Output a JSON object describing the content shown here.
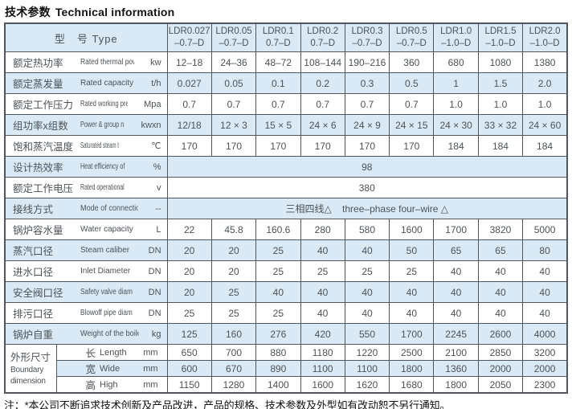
{
  "page": {
    "title_cn": "技术参数",
    "title_en": "Technical information",
    "footer_note": "注：*本公司不断追求技术创新及产品改进，产品的规格、技术参数及外型如有改动恕不另行通知。"
  },
  "colors": {
    "stripe": "#d9e9f5",
    "border": "#50565c",
    "text": "#4c5257"
  },
  "table": {
    "header_label": "型　号 Type",
    "models": [
      {
        "name": "LDR0.027",
        "suffix": "–0.7–D"
      },
      {
        "name": "LDR0.05",
        "suffix": "–0.7–D"
      },
      {
        "name": "LDR0.1",
        "suffix": "0.7–D"
      },
      {
        "name": "LDR0.2",
        "suffix": "0.7–D"
      },
      {
        "name": "LDR0.3",
        "suffix": "–0.7–D"
      },
      {
        "name": "LDR0.5",
        "suffix": "–0.7–D"
      },
      {
        "name": "LDR1.0",
        "suffix": "–1.0–D"
      },
      {
        "name": "LDR1.5",
        "suffix": "–1.0–D"
      },
      {
        "name": "LDR2.0",
        "suffix": "–1.0–D"
      }
    ],
    "rows": [
      {
        "cn": "额定热功率",
        "en": "Rated thermal power",
        "unit": "kw",
        "values": [
          "12–18",
          "24–36",
          "48–72",
          "108–144",
          "190–216",
          "360",
          "680",
          "1080",
          "1380"
        ]
      },
      {
        "cn": "额定蒸发量",
        "en": "Rated capacity",
        "unit": "t/h",
        "values": [
          "0.027",
          "0.05",
          "0.1",
          "0.2",
          "0.3",
          "0.5",
          "1",
          "1.5",
          "2.0"
        ]
      },
      {
        "cn": "额定工作压力",
        "en": "Rated working pressure",
        "unit": "Mpa",
        "values": [
          "0.7",
          "0.7",
          "0.7",
          "0.7",
          "0.7",
          "0.7",
          "1.0",
          "1.0",
          "1.0"
        ]
      },
      {
        "cn": "组功率x组数",
        "en": "Power & group number",
        "unit": "kwxn",
        "values": [
          "12/18",
          "12 × 3",
          "15 × 5",
          "24 × 6",
          "24 × 9",
          "24 × 15",
          "24 × 30",
          "33 × 32",
          "24 × 60"
        ]
      },
      {
        "cn": "饱和蒸汽温度",
        "en": "Saturated steam temperature",
        "unit": "℃",
        "values": [
          "170",
          "170",
          "170",
          "170",
          "170",
          "170",
          "184",
          "184",
          "184"
        ]
      },
      {
        "cn": "设计热效率",
        "en": "Heat efficiency of design",
        "unit": "%",
        "merged": "98"
      },
      {
        "cn": "额定工作电压",
        "en": "Rated operational voltage",
        "unit": "v",
        "merged": "380"
      },
      {
        "cn": "接线方式",
        "en": "Mode of connection",
        "unit": "--",
        "merged": "三相四线△    three–phase four–wire △"
      },
      {
        "cn": "锅炉容水量",
        "en": "Water capacity",
        "unit": "L",
        "values": [
          "22",
          "45.8",
          "160.6",
          "280",
          "580",
          "1600",
          "1700",
          "3820",
          "5000"
        ]
      },
      {
        "cn": "蒸汽口径",
        "en": "Steam caliber",
        "unit": "DN",
        "values": [
          "20",
          "20",
          "25",
          "40",
          "40",
          "50",
          "65",
          "65",
          "80"
        ]
      },
      {
        "cn": "进水口径",
        "en": "Inlet Diameter",
        "unit": "DN",
        "values": [
          "20",
          "20",
          "25",
          "25",
          "25",
          "25",
          "40",
          "40",
          "40"
        ]
      },
      {
        "cn": "安全阀口径",
        "en": "Safety valve diameter",
        "unit": "DN",
        "values": [
          "20",
          "25",
          "40",
          "40",
          "40",
          "40",
          "40",
          "40",
          "40"
        ]
      },
      {
        "cn": "排污口径",
        "en": "Blowoff pipe diameter",
        "unit": "DN",
        "values": [
          "25",
          "25",
          "25",
          "40",
          "40",
          "40",
          "40",
          "40",
          "40"
        ]
      },
      {
        "cn": "锅炉自重",
        "en": "Weight of the boiler",
        "unit": "kg",
        "values": [
          "125",
          "160",
          "276",
          "420",
          "550",
          "1700",
          "2245",
          "2600",
          "4000"
        ]
      }
    ],
    "dimension_group": {
      "cn": "外形尺寸",
      "en": "Boundary dimension",
      "rows": [
        {
          "cn": "长",
          "en": "Length",
          "unit": "mm",
          "values": [
            "650",
            "700",
            "880",
            "1180",
            "1220",
            "2500",
            "2100",
            "2850",
            "3200"
          ]
        },
        {
          "cn": "宽",
          "en": "Wide",
          "unit": "mm",
          "values": [
            "600",
            "670",
            "890",
            "1100",
            "1100",
            "1800",
            "1360",
            "2000",
            "2000"
          ]
        },
        {
          "cn": "高",
          "en": "High",
          "unit": "mm",
          "values": [
            "1150",
            "1280",
            "1400",
            "1600",
            "1620",
            "1680",
            "1800",
            "2050",
            "2300"
          ]
        }
      ]
    }
  }
}
